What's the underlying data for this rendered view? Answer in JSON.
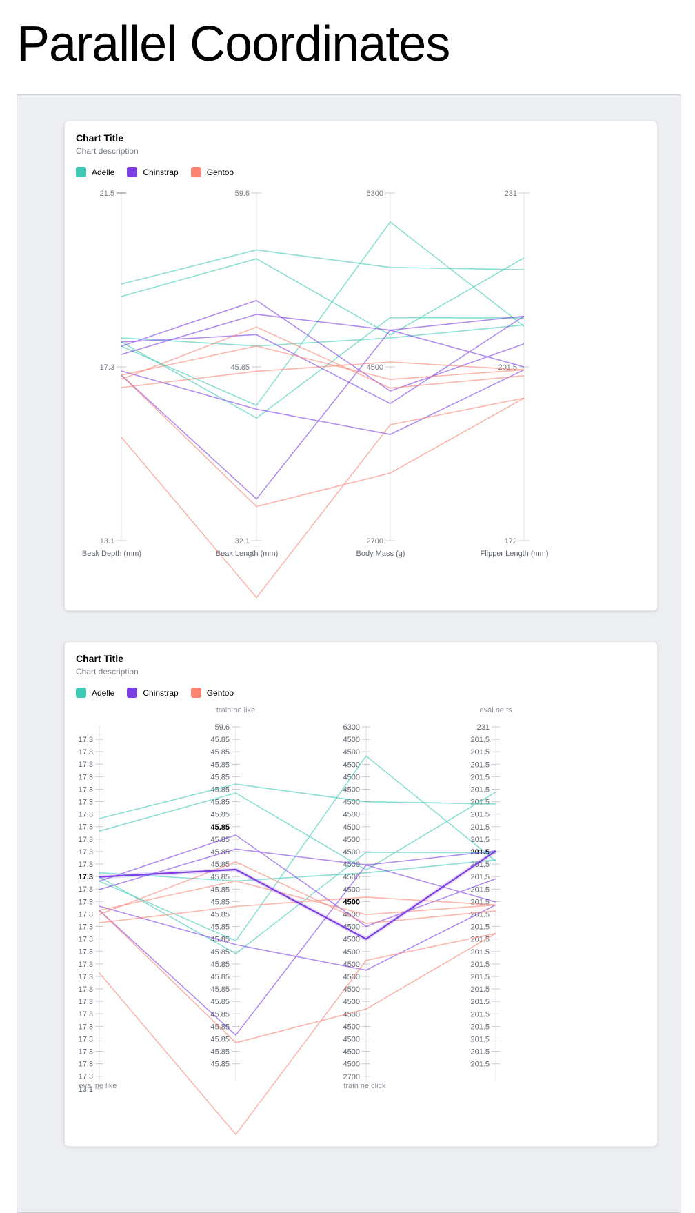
{
  "page_title": "Parallel Coordinates",
  "legend": [
    {
      "name": "Adelle",
      "color": "#3ecab5"
    },
    {
      "name": "Chinstrap",
      "color": "#7b3fe4"
    },
    {
      "name": "Gentoo",
      "color": "#fa8474"
    }
  ],
  "chart_data": [
    {
      "type": "parallel",
      "title": "Chart Title",
      "description": "Chart description",
      "axes": [
        {
          "label": "Beak Depth (mm)",
          "min": 13.1,
          "mid": 17.3,
          "max": 21.5,
          "ticks": [
            "21.5",
            "17.3",
            "13.1"
          ]
        },
        {
          "label": "Beak Length (mm)",
          "min": 32.1,
          "mid": 45.85,
          "max": 59.6,
          "ticks": [
            "59.6",
            "45.85",
            "32.1"
          ]
        },
        {
          "label": "Body Mass (g)",
          "min": 2700,
          "mid": 4500,
          "max": 6300,
          "ticks": [
            "6300",
            "4500",
            "2700"
          ]
        },
        {
          "label": "Flipper Length (mm)",
          "min": 172,
          "mid": 201.5,
          "max": 231,
          "ticks": [
            "231",
            "201.5",
            "172"
          ]
        }
      ],
      "series": [
        {
          "species": "Adelle",
          "values": [
            19.3,
            55.1,
            5530,
            218.0
          ]
        },
        {
          "species": "Adelle",
          "values": [
            19.0,
            54.4,
            4830,
            220.0
          ]
        },
        {
          "species": "Adelle",
          "values": [
            17.9,
            41.8,
            5010,
            209.8
          ]
        },
        {
          "species": "Adelle",
          "values": [
            18.0,
            47.5,
            4800,
            208.6
          ]
        },
        {
          "species": "Adelle",
          "values": [
            17.8,
            42.8,
            6000,
            208.4
          ]
        },
        {
          "species": "Chinstrap",
          "values": [
            17.8,
            51.1,
            4250,
            205.4
          ]
        },
        {
          "species": "Chinstrap",
          "values": [
            17.9,
            48.4,
            4120,
            210.1
          ]
        },
        {
          "species": "Chinstrap",
          "values": [
            17.6,
            50.0,
            4880,
            210.1
          ]
        },
        {
          "species": "Chinstrap",
          "values": [
            17.1,
            35.4,
            4880,
            201.5
          ]
        },
        {
          "species": "Chinstrap",
          "values": [
            17.2,
            42.5,
            3800,
            201.0
          ]
        },
        {
          "species": "Gentoo",
          "values": [
            17.0,
            49.0,
            4280,
            200.0
          ]
        },
        {
          "species": "Gentoo",
          "values": [
            16.8,
            45.5,
            4550,
            201.0
          ]
        },
        {
          "species": "Gentoo",
          "values": [
            17.1,
            34.8,
            3400,
            196.2
          ]
        },
        {
          "species": "Gentoo",
          "values": [
            15.6,
            27.6,
            3900,
            196.2
          ]
        },
        {
          "species": "Gentoo",
          "values": [
            17.1,
            47.5,
            4370,
            201.0
          ]
        }
      ]
    },
    {
      "type": "parallel",
      "title": "Chart Title",
      "description": "Chart description",
      "highlight_index": 6,
      "axes": [
        {
          "min": 13.1,
          "max": 21.5,
          "label": "eval ne like",
          "label_position": "bottom",
          "top_tick": "17.3",
          "bottom_tick": "13.1",
          "repeated_tick": "17.3",
          "highlight_tick": "17.3"
        },
        {
          "min": 32.1,
          "max": 59.6,
          "label": "train ne like",
          "label_position": "top",
          "top_tick": "59.6",
          "bottom_tick": "",
          "repeated_tick": "45.85",
          "highlight_tick": "45.85"
        },
        {
          "min": 2700,
          "max": 6300,
          "label": "train ne click",
          "label_position": "bottom",
          "top_tick": "6300",
          "bottom_tick": "2700",
          "repeated_tick": "4500",
          "highlight_tick": "4500"
        },
        {
          "min": 172,
          "max": 231,
          "label": "eval ne ts",
          "label_position": "top",
          "top_tick": "231",
          "bottom_tick": "",
          "repeated_tick": "201.5",
          "highlight_tick": "201.5"
        }
      ]
    }
  ]
}
